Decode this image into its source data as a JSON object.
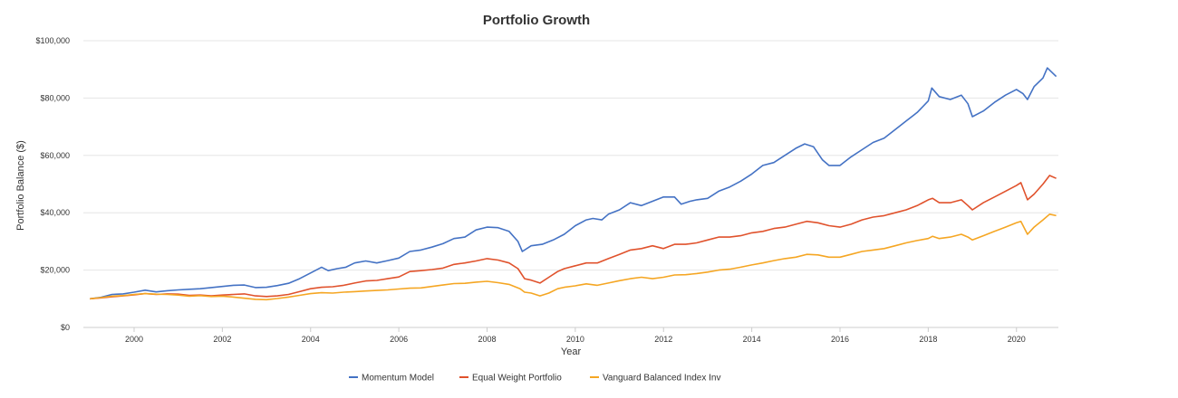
{
  "chart_data": {
    "type": "line",
    "title": "Portfolio Growth",
    "xlabel": "Year",
    "ylabel": "Portfolio Balance ($)",
    "xlim": [
      1998.85,
      2020.95
    ],
    "ylim": [
      0,
      100000
    ],
    "x_ticks": [
      2000,
      2002,
      2004,
      2006,
      2008,
      2010,
      2012,
      2014,
      2016,
      2018,
      2020
    ],
    "x_tick_labels": [
      "2000",
      "2002",
      "2004",
      "2006",
      "2008",
      "2010",
      "2012",
      "2014",
      "2016",
      "2018",
      "2020"
    ],
    "y_ticks": [
      0,
      20000,
      40000,
      60000,
      80000,
      100000
    ],
    "y_tick_labels": [
      "$0",
      "$20,000",
      "$40,000",
      "$60,000",
      "$80,000",
      "$100,000"
    ],
    "grid": "horizontal",
    "legend_position": "bottom",
    "series": [
      {
        "name": "Momentum Model",
        "color": "#4472C4",
        "points": [
          [
            1999.0,
            10000
          ],
          [
            1999.25,
            10500
          ],
          [
            1999.5,
            11500
          ],
          [
            1999.75,
            11700
          ],
          [
            2000.0,
            12300
          ],
          [
            2000.25,
            13000
          ],
          [
            2000.5,
            12400
          ],
          [
            2000.75,
            12800
          ],
          [
            2001.0,
            13100
          ],
          [
            2001.25,
            13300
          ],
          [
            2001.5,
            13500
          ],
          [
            2001.75,
            13900
          ],
          [
            2002.0,
            14300
          ],
          [
            2002.25,
            14700
          ],
          [
            2002.5,
            14800
          ],
          [
            2002.75,
            13900
          ],
          [
            2003.0,
            14000
          ],
          [
            2003.25,
            14600
          ],
          [
            2003.5,
            15400
          ],
          [
            2003.75,
            17000
          ],
          [
            2004.0,
            19000
          ],
          [
            2004.25,
            21000
          ],
          [
            2004.4,
            19800
          ],
          [
            2004.6,
            20500
          ],
          [
            2004.8,
            21000
          ],
          [
            2005.0,
            22500
          ],
          [
            2005.25,
            23200
          ],
          [
            2005.5,
            22500
          ],
          [
            2005.75,
            23300
          ],
          [
            2006.0,
            24200
          ],
          [
            2006.25,
            26500
          ],
          [
            2006.5,
            27000
          ],
          [
            2006.75,
            28000
          ],
          [
            2007.0,
            29200
          ],
          [
            2007.25,
            31000
          ],
          [
            2007.5,
            31500
          ],
          [
            2007.75,
            34000
          ],
          [
            2008.0,
            35000
          ],
          [
            2008.25,
            34800
          ],
          [
            2008.5,
            33500
          ],
          [
            2008.7,
            30000
          ],
          [
            2008.8,
            26500
          ],
          [
            2009.0,
            28500
          ],
          [
            2009.25,
            29000
          ],
          [
            2009.5,
            30500
          ],
          [
            2009.75,
            32500
          ],
          [
            2010.0,
            35500
          ],
          [
            2010.25,
            37500
          ],
          [
            2010.4,
            38000
          ],
          [
            2010.6,
            37500
          ],
          [
            2010.75,
            39500
          ],
          [
            2011.0,
            41000
          ],
          [
            2011.25,
            43500
          ],
          [
            2011.5,
            42500
          ],
          [
            2011.75,
            44000
          ],
          [
            2012.0,
            45500
          ],
          [
            2012.25,
            45500
          ],
          [
            2012.4,
            43000
          ],
          [
            2012.6,
            44000
          ],
          [
            2012.75,
            44500
          ],
          [
            2013.0,
            45000
          ],
          [
            2013.25,
            47500
          ],
          [
            2013.5,
            49000
          ],
          [
            2013.75,
            51000
          ],
          [
            2014.0,
            53500
          ],
          [
            2014.25,
            56500
          ],
          [
            2014.5,
            57500
          ],
          [
            2014.75,
            60000
          ],
          [
            2015.0,
            62500
          ],
          [
            2015.2,
            64000
          ],
          [
            2015.4,
            63000
          ],
          [
            2015.6,
            58500
          ],
          [
            2015.75,
            56500
          ],
          [
            2016.0,
            56500
          ],
          [
            2016.25,
            59500
          ],
          [
            2016.5,
            62000
          ],
          [
            2016.75,
            64500
          ],
          [
            2017.0,
            66000
          ],
          [
            2017.25,
            69000
          ],
          [
            2017.5,
            72000
          ],
          [
            2017.75,
            75000
          ],
          [
            2018.0,
            79000
          ],
          [
            2018.08,
            83500
          ],
          [
            2018.25,
            80500
          ],
          [
            2018.5,
            79500
          ],
          [
            2018.75,
            81000
          ],
          [
            2018.9,
            78000
          ],
          [
            2019.0,
            73500
          ],
          [
            2019.25,
            75500
          ],
          [
            2019.5,
            78500
          ],
          [
            2019.75,
            81000
          ],
          [
            2020.0,
            83000
          ],
          [
            2020.15,
            81500
          ],
          [
            2020.25,
            79500
          ],
          [
            2020.4,
            84000
          ],
          [
            2020.6,
            87000
          ],
          [
            2020.7,
            90500
          ],
          [
            2020.9,
            87500
          ]
        ]
      },
      {
        "name": "Equal Weight Portfolio",
        "color": "#E0522C",
        "points": [
          [
            1999.0,
            10000
          ],
          [
            1999.25,
            10300
          ],
          [
            1999.5,
            10700
          ],
          [
            1999.75,
            11000
          ],
          [
            2000.0,
            11400
          ],
          [
            2000.25,
            11800
          ],
          [
            2000.5,
            11500
          ],
          [
            2000.75,
            11700
          ],
          [
            2001.0,
            11600
          ],
          [
            2001.25,
            11200
          ],
          [
            2001.5,
            11300
          ],
          [
            2001.75,
            11000
          ],
          [
            2002.0,
            11300
          ],
          [
            2002.25,
            11500
          ],
          [
            2002.5,
            11700
          ],
          [
            2002.75,
            11000
          ],
          [
            2003.0,
            10800
          ],
          [
            2003.25,
            11000
          ],
          [
            2003.5,
            11500
          ],
          [
            2003.75,
            12500
          ],
          [
            2004.0,
            13500
          ],
          [
            2004.25,
            14000
          ],
          [
            2004.5,
            14200
          ],
          [
            2004.75,
            14700
          ],
          [
            2005.0,
            15500
          ],
          [
            2005.25,
            16200
          ],
          [
            2005.5,
            16400
          ],
          [
            2005.75,
            17000
          ],
          [
            2006.0,
            17600
          ],
          [
            2006.25,
            19500
          ],
          [
            2006.5,
            19800
          ],
          [
            2006.75,
            20200
          ],
          [
            2007.0,
            20700
          ],
          [
            2007.25,
            22000
          ],
          [
            2007.5,
            22500
          ],
          [
            2007.75,
            23200
          ],
          [
            2008.0,
            24000
          ],
          [
            2008.25,
            23500
          ],
          [
            2008.5,
            22500
          ],
          [
            2008.7,
            20500
          ],
          [
            2008.85,
            17000
          ],
          [
            2009.0,
            16500
          ],
          [
            2009.2,
            15500
          ],
          [
            2009.4,
            17500
          ],
          [
            2009.6,
            19500
          ],
          [
            2009.75,
            20500
          ],
          [
            2010.0,
            21500
          ],
          [
            2010.25,
            22500
          ],
          [
            2010.5,
            22500
          ],
          [
            2010.75,
            24000
          ],
          [
            2011.0,
            25500
          ],
          [
            2011.25,
            27000
          ],
          [
            2011.5,
            27500
          ],
          [
            2011.75,
            28500
          ],
          [
            2012.0,
            27500
          ],
          [
            2012.25,
            29000
          ],
          [
            2012.5,
            29000
          ],
          [
            2012.75,
            29500
          ],
          [
            2013.0,
            30500
          ],
          [
            2013.25,
            31500
          ],
          [
            2013.5,
            31500
          ],
          [
            2013.75,
            32000
          ],
          [
            2014.0,
            33000
          ],
          [
            2014.25,
            33500
          ],
          [
            2014.5,
            34500
          ],
          [
            2014.75,
            35000
          ],
          [
            2015.0,
            36000
          ],
          [
            2015.25,
            37000
          ],
          [
            2015.5,
            36500
          ],
          [
            2015.75,
            35500
          ],
          [
            2016.0,
            35000
          ],
          [
            2016.25,
            36000
          ],
          [
            2016.5,
            37500
          ],
          [
            2016.75,
            38500
          ],
          [
            2017.0,
            39000
          ],
          [
            2017.25,
            40000
          ],
          [
            2017.5,
            41000
          ],
          [
            2017.75,
            42500
          ],
          [
            2018.0,
            44500
          ],
          [
            2018.1,
            45000
          ],
          [
            2018.25,
            43500
          ],
          [
            2018.5,
            43500
          ],
          [
            2018.75,
            44500
          ],
          [
            2018.9,
            42500
          ],
          [
            2019.0,
            41000
          ],
          [
            2019.25,
            43500
          ],
          [
            2019.5,
            45500
          ],
          [
            2019.75,
            47500
          ],
          [
            2020.0,
            49500
          ],
          [
            2020.1,
            50500
          ],
          [
            2020.25,
            44500
          ],
          [
            2020.4,
            46500
          ],
          [
            2020.6,
            50000
          ],
          [
            2020.75,
            53000
          ],
          [
            2020.9,
            52000
          ]
        ]
      },
      {
        "name": "Vanguard Balanced Index Inv",
        "color": "#F5A623",
        "points": [
          [
            1999.0,
            10000
          ],
          [
            1999.25,
            10400
          ],
          [
            1999.5,
            10900
          ],
          [
            1999.75,
            11100
          ],
          [
            2000.0,
            11500
          ],
          [
            2000.25,
            11800
          ],
          [
            2000.5,
            11600
          ],
          [
            2000.75,
            11500
          ],
          [
            2001.0,
            11300
          ],
          [
            2001.25,
            10900
          ],
          [
            2001.5,
            11100
          ],
          [
            2001.75,
            10800
          ],
          [
            2002.0,
            10900
          ],
          [
            2002.25,
            10600
          ],
          [
            2002.5,
            10200
          ],
          [
            2002.75,
            9800
          ],
          [
            2003.0,
            9700
          ],
          [
            2003.25,
            10100
          ],
          [
            2003.5,
            10600
          ],
          [
            2003.75,
            11200
          ],
          [
            2004.0,
            11800
          ],
          [
            2004.25,
            12100
          ],
          [
            2004.5,
            12000
          ],
          [
            2004.75,
            12300
          ],
          [
            2005.0,
            12500
          ],
          [
            2005.25,
            12700
          ],
          [
            2005.5,
            12900
          ],
          [
            2005.75,
            13100
          ],
          [
            2006.0,
            13400
          ],
          [
            2006.25,
            13700
          ],
          [
            2006.5,
            13800
          ],
          [
            2006.75,
            14300
          ],
          [
            2007.0,
            14800
          ],
          [
            2007.25,
            15300
          ],
          [
            2007.5,
            15400
          ],
          [
            2007.75,
            15800
          ],
          [
            2008.0,
            16100
          ],
          [
            2008.25,
            15600
          ],
          [
            2008.5,
            15000
          ],
          [
            2008.75,
            13500
          ],
          [
            2008.85,
            12300
          ],
          [
            2009.0,
            12000
          ],
          [
            2009.2,
            11000
          ],
          [
            2009.4,
            12000
          ],
          [
            2009.6,
            13500
          ],
          [
            2009.75,
            14000
          ],
          [
            2010.0,
            14500
          ],
          [
            2010.25,
            15200
          ],
          [
            2010.5,
            14700
          ],
          [
            2010.75,
            15500
          ],
          [
            2011.0,
            16300
          ],
          [
            2011.25,
            17000
          ],
          [
            2011.5,
            17500
          ],
          [
            2011.75,
            17000
          ],
          [
            2012.0,
            17500
          ],
          [
            2012.25,
            18300
          ],
          [
            2012.5,
            18400
          ],
          [
            2012.75,
            18800
          ],
          [
            2013.0,
            19300
          ],
          [
            2013.25,
            20000
          ],
          [
            2013.5,
            20300
          ],
          [
            2013.75,
            21000
          ],
          [
            2014.0,
            21800
          ],
          [
            2014.25,
            22500
          ],
          [
            2014.5,
            23300
          ],
          [
            2014.75,
            24000
          ],
          [
            2015.0,
            24500
          ],
          [
            2015.25,
            25500
          ],
          [
            2015.5,
            25300
          ],
          [
            2015.75,
            24500
          ],
          [
            2016.0,
            24500
          ],
          [
            2016.25,
            25500
          ],
          [
            2016.5,
            26500
          ],
          [
            2016.75,
            27000
          ],
          [
            2017.0,
            27500
          ],
          [
            2017.25,
            28500
          ],
          [
            2017.5,
            29500
          ],
          [
            2017.75,
            30300
          ],
          [
            2018.0,
            31000
          ],
          [
            2018.1,
            31800
          ],
          [
            2018.25,
            31000
          ],
          [
            2018.5,
            31500
          ],
          [
            2018.75,
            32500
          ],
          [
            2018.9,
            31500
          ],
          [
            2019.0,
            30500
          ],
          [
            2019.25,
            32000
          ],
          [
            2019.5,
            33500
          ],
          [
            2019.75,
            35000
          ],
          [
            2020.0,
            36500
          ],
          [
            2020.1,
            37000
          ],
          [
            2020.25,
            32500
          ],
          [
            2020.4,
            35000
          ],
          [
            2020.6,
            37500
          ],
          [
            2020.75,
            39500
          ],
          [
            2020.9,
            39000
          ]
        ]
      }
    ]
  }
}
